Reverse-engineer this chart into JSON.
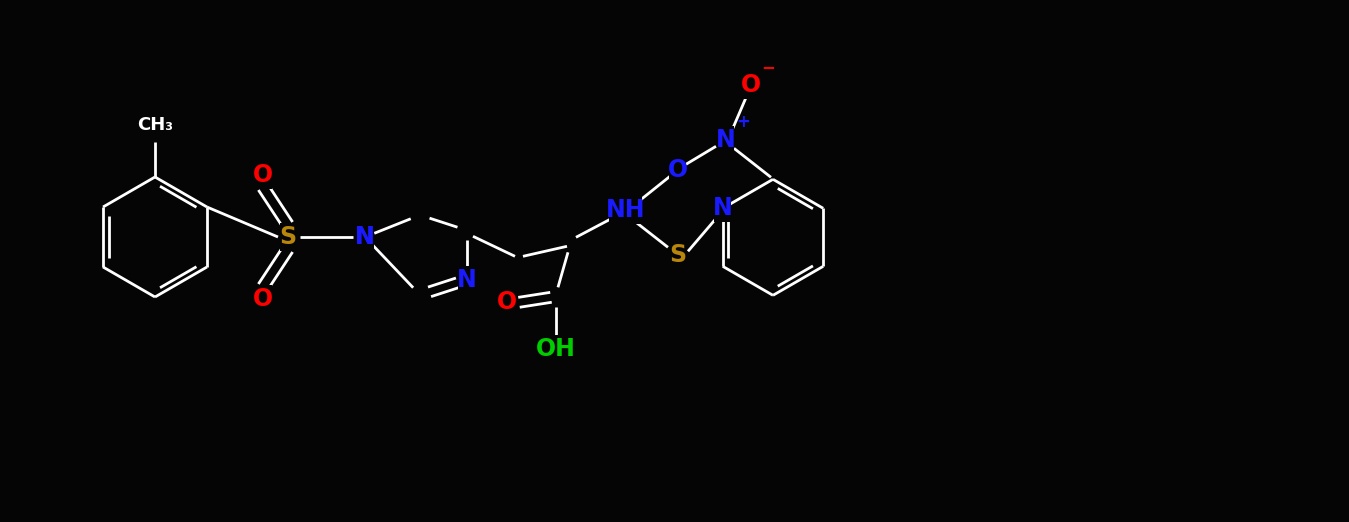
{
  "bg_color": "#050505",
  "bond_color": "#ffffff",
  "line_width": 2.0,
  "figsize": [
    13.49,
    5.22
  ],
  "dpi": 100,
  "xlim": [
    0,
    13.49
  ],
  "ylim": [
    0,
    5.22
  ],
  "S_color": "#b8860b",
  "N_color": "#1a1aff",
  "O_color": "#ff0000",
  "OH_color": "#00cc00",
  "O_minus_color": "#ff0000",
  "N_plus_color": "#1a1aff"
}
